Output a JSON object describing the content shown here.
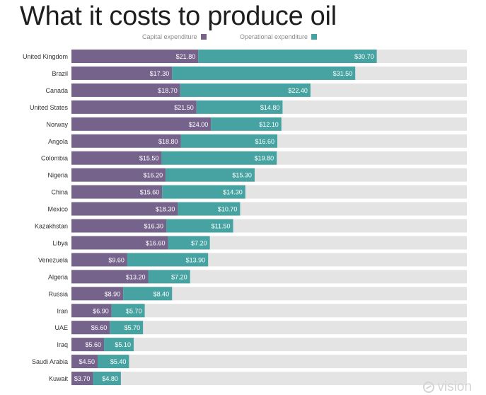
{
  "chart_data": {
    "type": "bar",
    "orientation": "horizontal",
    "stacked": true,
    "title": "What it costs to produce oil",
    "xlabel": "",
    "ylabel": "",
    "xlim": [
      0,
      68
    ],
    "grid": false,
    "legend_position": "top-center",
    "categories": [
      "United Kingdom",
      "Brazil",
      "Canada",
      "United States",
      "Norway",
      "Angola",
      "Colombia",
      "Nigeria",
      "China",
      "Mexico",
      "Kazakhstan",
      "Libya",
      "Venezuela",
      "Algeria",
      "Russia",
      "Iran",
      "UAE",
      "Iraq",
      "Saudi Arabia",
      "Kuwait"
    ],
    "series": [
      {
        "name": "Capital expenditure",
        "color": "#76638c",
        "values": [
          21.8,
          17.3,
          18.7,
          21.5,
          24.0,
          18.8,
          15.5,
          16.2,
          15.6,
          18.3,
          16.3,
          16.6,
          9.6,
          13.2,
          8.9,
          6.9,
          6.6,
          5.6,
          4.5,
          3.7
        ],
        "labels": [
          "$21.80",
          "$17.30",
          "$18.70",
          "$21.50",
          "$24.00",
          "$18.80",
          "$15.50",
          "$16.20",
          "$15.60",
          "$18.30",
          "$16.30",
          "$16.60",
          "$9.60",
          "$13.20",
          "$8.90",
          "$6.90",
          "$6.60",
          "$5.60",
          "$4.50",
          "$3.70"
        ]
      },
      {
        "name": "Operational expenditure",
        "color": "#46a3a1",
        "values": [
          30.7,
          31.5,
          22.4,
          14.8,
          12.1,
          16.6,
          19.8,
          15.3,
          14.3,
          10.7,
          11.5,
          7.2,
          13.9,
          7.2,
          8.4,
          5.7,
          5.7,
          5.1,
          5.4,
          4.8
        ],
        "labels": [
          "$30.70",
          "$31.50",
          "$22.40",
          "$14.80",
          "$12.10",
          "$16.60",
          "$19.80",
          "$15.30",
          "$14.30",
          "$10.70",
          "$11.50",
          "$7.20",
          "$13.90",
          "$7.20",
          "$8.40",
          "$5.70",
          "$5.70",
          "$5.10",
          "$5.40",
          "$4.80"
        ]
      }
    ],
    "background_track_color": "#e4e4e4"
  },
  "watermark": {
    "text": "vision",
    "icon": "vision-logo-icon"
  }
}
